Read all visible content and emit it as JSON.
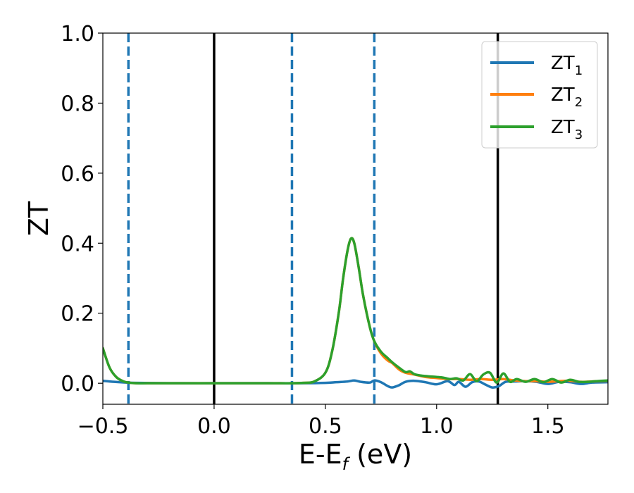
{
  "chart_data": {
    "type": "line",
    "xlabel": "E-E",
    "xlabel_sub": "f",
    "xlabel_unit": " (eV)",
    "ylabel": "ZT",
    "xlim": [
      -0.5,
      1.77
    ],
    "ylim": [
      -0.06,
      1.0
    ],
    "xticks": [
      -0.5,
      0.0,
      0.5,
      1.0,
      1.5
    ],
    "xtick_labels": [
      "−0.5",
      "0.0",
      "0.5",
      "1.0",
      "1.5"
    ],
    "yticks": [
      0.0,
      0.2,
      0.4,
      0.6,
      0.8,
      1.0
    ],
    "ytick_labels": [
      "0.0",
      "0.2",
      "0.4",
      "0.6",
      "0.8",
      "1.0"
    ],
    "grid": false,
    "legend_position": "top-right",
    "vlines": [
      {
        "x": -0.385,
        "style": "dashed",
        "color": "#1f77b4"
      },
      {
        "x": 0.0,
        "style": "solid",
        "color": "#000000"
      },
      {
        "x": 0.35,
        "style": "dashed",
        "color": "#1f77b4"
      },
      {
        "x": 0.72,
        "style": "dashed",
        "color": "#1f77b4"
      },
      {
        "x": 1.275,
        "style": "solid",
        "color": "#000000"
      }
    ],
    "series": [
      {
        "name": "ZT",
        "name_sub": "1",
        "color": "#1f77b4",
        "x": [
          -0.5,
          -0.45,
          -0.4,
          -0.35,
          -0.2,
          0.0,
          0.2,
          0.4,
          0.5,
          0.55,
          0.6,
          0.63,
          0.66,
          0.7,
          0.72,
          0.75,
          0.78,
          0.8,
          0.83,
          0.86,
          0.9,
          0.95,
          1.0,
          1.05,
          1.08,
          1.1,
          1.13,
          1.16,
          1.19,
          1.22,
          1.25,
          1.28,
          1.31,
          1.35,
          1.4,
          1.45,
          1.5,
          1.55,
          1.6,
          1.65,
          1.7,
          1.77
        ],
        "y": [
          0.007,
          0.004,
          0.002,
          0.001,
          0.0,
          0.0,
          0.0,
          0.0,
          0.001,
          0.003,
          0.005,
          0.008,
          0.004,
          0.002,
          0.008,
          0.003,
          -0.008,
          -0.012,
          -0.006,
          0.004,
          0.007,
          0.003,
          -0.003,
          0.006,
          -0.005,
          0.004,
          -0.01,
          0.003,
          0.005,
          -0.004,
          -0.012,
          -0.008,
          0.004,
          0.005,
          0.006,
          0.004,
          -0.002,
          0.004,
          0.003,
          -0.002,
          0.002,
          0.003
        ]
      },
      {
        "name": "ZT",
        "name_sub": "2",
        "color": "#ff7f0e",
        "x": [
          -0.5,
          -0.47,
          -0.44,
          -0.41,
          -0.385,
          -0.35,
          -0.3,
          -0.2,
          0.0,
          0.2,
          0.3,
          0.35,
          0.4,
          0.45,
          0.5,
          0.53,
          0.56,
          0.58,
          0.6,
          0.615,
          0.63,
          0.65,
          0.67,
          0.7,
          0.72,
          0.75,
          0.78,
          0.8,
          0.83,
          0.86,
          0.9,
          0.95,
          1.0,
          1.05,
          1.1,
          1.15,
          1.2,
          1.25,
          1.3,
          1.35,
          1.4,
          1.45,
          1.5,
          1.55,
          1.6,
          1.65,
          1.7,
          1.77
        ],
        "y": [
          0.1,
          0.045,
          0.018,
          0.006,
          0.002,
          0.0,
          0.0,
          0.0,
          0.0,
          0.0,
          0.0,
          0.0,
          0.001,
          0.005,
          0.03,
          0.09,
          0.2,
          0.3,
          0.38,
          0.413,
          0.4,
          0.33,
          0.25,
          0.16,
          0.12,
          0.085,
          0.065,
          0.058,
          0.04,
          0.03,
          0.025,
          0.018,
          0.015,
          0.012,
          0.012,
          0.01,
          0.012,
          0.01,
          0.012,
          0.008,
          0.006,
          0.006,
          0.004,
          0.006,
          0.007,
          0.004,
          0.005,
          0.007
        ]
      },
      {
        "name": "ZT",
        "name_sub": "3",
        "color": "#2ca02c",
        "x": [
          -0.5,
          -0.47,
          -0.44,
          -0.41,
          -0.385,
          -0.35,
          -0.3,
          -0.2,
          0.0,
          0.2,
          0.3,
          0.35,
          0.4,
          0.45,
          0.5,
          0.53,
          0.56,
          0.58,
          0.6,
          0.615,
          0.63,
          0.65,
          0.67,
          0.7,
          0.72,
          0.75,
          0.78,
          0.8,
          0.83,
          0.86,
          0.88,
          0.9,
          0.93,
          0.96,
          1.0,
          1.03,
          1.06,
          1.09,
          1.12,
          1.15,
          1.18,
          1.21,
          1.24,
          1.27,
          1.3,
          1.33,
          1.36,
          1.4,
          1.44,
          1.48,
          1.52,
          1.56,
          1.6,
          1.64,
          1.68,
          1.72,
          1.77
        ],
        "y": [
          0.1,
          0.045,
          0.018,
          0.006,
          0.002,
          0.0,
          0.0,
          0.0,
          0.0,
          0.0,
          0.0,
          0.0,
          0.001,
          0.005,
          0.03,
          0.09,
          0.2,
          0.3,
          0.38,
          0.413,
          0.4,
          0.33,
          0.25,
          0.16,
          0.12,
          0.09,
          0.072,
          0.06,
          0.045,
          0.032,
          0.034,
          0.026,
          0.022,
          0.02,
          0.018,
          0.016,
          0.012,
          0.014,
          0.008,
          0.026,
          0.006,
          0.025,
          0.03,
          0.002,
          0.028,
          0.004,
          0.012,
          0.004,
          0.012,
          0.003,
          0.012,
          0.002,
          0.01,
          0.004,
          0.004,
          0.006,
          0.008
        ]
      }
    ]
  }
}
